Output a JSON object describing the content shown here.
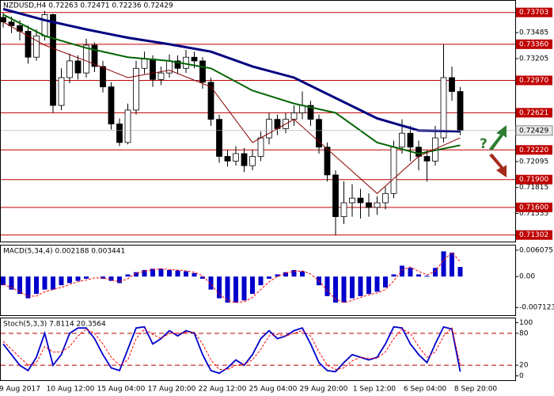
{
  "chart_data": [
    {
      "type": "candlestick",
      "title": "NZDUSD,H4 0.72263 0.72471 0.72236 0.72429",
      "annotation": "?",
      "color_up": "#ffffff",
      "color_down": "#000000",
      "ylim": [
        0.7124,
        0.7382
      ],
      "yticks": [
        0.73485,
        0.73205,
        0.72095,
        0.71815,
        0.71535
      ],
      "levels": [
        {
          "value": 0.73703,
          "label": "0.73703"
        },
        {
          "value": 0.7336,
          "label": "0.73360"
        },
        {
          "value": 0.7297,
          "label": "0.72970"
        },
        {
          "value": 0.72621,
          "label": "0.72621"
        },
        {
          "value": 0.7222,
          "label": "0.72220"
        },
        {
          "value": 0.719,
          "label": "0.71900"
        },
        {
          "value": 0.716,
          "label": "0.71600"
        },
        {
          "value": 0.71302,
          "label": "0.71302"
        }
      ],
      "level_color": "#c00000",
      "last_price": 0.72429,
      "open": [
        0.7365,
        0.736,
        0.7356,
        0.735,
        0.7322,
        0.7345,
        0.7368,
        0.727,
        0.73,
        0.7318,
        0.7305,
        0.7335,
        0.7312,
        0.729,
        0.725,
        0.723,
        0.7265,
        0.731,
        0.732,
        0.7298,
        0.7305,
        0.7318,
        0.731,
        0.7322,
        0.7318,
        0.7295,
        0.7255,
        0.7215,
        0.721,
        0.7218,
        0.7205,
        0.7215,
        0.7235,
        0.7255,
        0.7245,
        0.7255,
        0.7262,
        0.727,
        0.7255,
        0.7225,
        0.7195,
        0.715,
        0.7165,
        0.717,
        0.7165,
        0.716,
        0.7165,
        0.7175,
        0.7225,
        0.724,
        0.7225,
        0.7215,
        0.721,
        0.7235,
        0.73,
        0.7285
      ],
      "high": [
        0.737,
        0.7366,
        0.7362,
        0.7356,
        0.7352,
        0.7372,
        0.7369,
        0.731,
        0.7326,
        0.7324,
        0.7342,
        0.7338,
        0.7318,
        0.7295,
        0.7256,
        0.7272,
        0.7318,
        0.7328,
        0.7324,
        0.7312,
        0.7325,
        0.7324,
        0.733,
        0.7328,
        0.7322,
        0.73,
        0.726,
        0.7222,
        0.7226,
        0.7224,
        0.7222,
        0.7242,
        0.7262,
        0.726,
        0.7262,
        0.727,
        0.7285,
        0.7275,
        0.726,
        0.723,
        0.72,
        0.7188,
        0.7185,
        0.718,
        0.7175,
        0.7172,
        0.7182,
        0.7232,
        0.7255,
        0.7248,
        0.7232,
        0.7222,
        0.7248,
        0.7336,
        0.7312,
        0.729
      ],
      "low": [
        0.7354,
        0.7348,
        0.734,
        0.7315,
        0.7318,
        0.734,
        0.7262,
        0.7265,
        0.7294,
        0.7298,
        0.73,
        0.7306,
        0.7284,
        0.7244,
        0.7226,
        0.7228,
        0.726,
        0.7304,
        0.729,
        0.7292,
        0.73,
        0.7304,
        0.7305,
        0.731,
        0.7288,
        0.7248,
        0.7208,
        0.7204,
        0.7205,
        0.7198,
        0.72,
        0.721,
        0.7228,
        0.7238,
        0.724,
        0.7248,
        0.7255,
        0.7248,
        0.7218,
        0.7188,
        0.713,
        0.7142,
        0.715,
        0.7148,
        0.715,
        0.7152,
        0.7158,
        0.717,
        0.7218,
        0.721,
        0.72,
        0.7188,
        0.7205,
        0.723,
        0.7275,
        0.7238
      ],
      "close": [
        0.736,
        0.7356,
        0.735,
        0.7322,
        0.7345,
        0.7368,
        0.727,
        0.73,
        0.7318,
        0.7305,
        0.7335,
        0.7312,
        0.729,
        0.725,
        0.723,
        0.7265,
        0.731,
        0.732,
        0.7298,
        0.7305,
        0.7318,
        0.731,
        0.7322,
        0.7318,
        0.7295,
        0.7255,
        0.7215,
        0.721,
        0.7218,
        0.7205,
        0.7215,
        0.7235,
        0.7255,
        0.7245,
        0.7255,
        0.7262,
        0.727,
        0.7255,
        0.7225,
        0.7195,
        0.715,
        0.7165,
        0.717,
        0.7165,
        0.716,
        0.7165,
        0.7175,
        0.7225,
        0.724,
        0.7225,
        0.7215,
        0.721,
        0.7235,
        0.73,
        0.7285,
        0.7243
      ],
      "moving_averages": [
        {
          "color": "#000080",
          "width": 3,
          "x": [
            0,
            5,
            10,
            15,
            20,
            25,
            30,
            35,
            40,
            45,
            50,
            55
          ],
          "values": [
            0.7374,
            0.7362,
            0.7352,
            0.7343,
            0.7336,
            0.7328,
            0.7312,
            0.73,
            0.7278,
            0.7256,
            0.7243,
            0.7242
          ]
        },
        {
          "color": "#006400",
          "width": 2,
          "x": [
            0,
            5,
            10,
            15,
            20,
            25,
            30,
            35,
            40,
            45,
            50,
            55
          ],
          "values": [
            0.7368,
            0.7345,
            0.7332,
            0.7322,
            0.7318,
            0.731,
            0.7286,
            0.7272,
            0.7262,
            0.723,
            0.7218,
            0.7227
          ]
        },
        {
          "color": "#8b0000",
          "width": 1,
          "x": [
            0,
            5,
            10,
            15,
            20,
            25,
            30,
            35,
            40,
            45,
            50,
            55
          ],
          "values": [
            0.736,
            0.7335,
            0.7318,
            0.73,
            0.7308,
            0.729,
            0.723,
            0.7255,
            0.7215,
            0.7175,
            0.7215,
            0.7235
          ]
        }
      ]
    },
    {
      "type": "bar",
      "title": "MACD(5,34,4) 0.002188 0.003441",
      "ylim": [
        -0.00872,
        0.00696
      ],
      "yticks": [
        0.006075,
        {
          "value": 0,
          "label": "0.00"
        },
        -0.007123
      ],
      "series": [
        {
          "type": "bar",
          "color": "#0000cc",
          "values": [
            -0.002,
            -0.003,
            -0.004,
            -0.005,
            -0.004,
            -0.003,
            -0.003,
            -0.002,
            -0.0015,
            -0.001,
            -0.0005,
            0,
            -0.0005,
            -0.001,
            -0.0015,
            0.0005,
            0.001,
            0.0015,
            0.0018,
            0.0018,
            0.0015,
            0.0014,
            0.0012,
            0.0008,
            -0.0005,
            -0.003,
            -0.005,
            -0.006,
            -0.006,
            -0.0055,
            -0.004,
            -0.002,
            -0.0005,
            0.0005,
            0.001,
            0.0015,
            0.0012,
            0,
            -0.002,
            -0.0045,
            -0.006,
            -0.006,
            -0.005,
            -0.0045,
            -0.004,
            -0.0035,
            -0.0025,
            0.0005,
            0.0025,
            0.002,
            0.0005,
            0.0002,
            0.002,
            0.0058,
            0.0055,
            0.0022
          ]
        },
        {
          "type": "line",
          "dashed": true,
          "color": "#ff0000",
          "values": [
            -0.0018,
            -0.0025,
            -0.0035,
            -0.0045,
            -0.0045,
            -0.0035,
            -0.003,
            -0.0025,
            -0.0018,
            -0.0012,
            -0.0008,
            -0.0003,
            -0.0003,
            -0.0008,
            -0.0012,
            -0.0005,
            0.0008,
            0.0012,
            0.0016,
            0.0018,
            0.0016,
            0.0015,
            0.0013,
            0.001,
            0.0002,
            -0.0018,
            -0.004,
            -0.0055,
            -0.006,
            -0.0058,
            -0.0048,
            -0.003,
            -0.0012,
            0,
            0.0008,
            0.0012,
            0.0013,
            0.0006,
            -0.001,
            -0.0032,
            -0.0052,
            -0.006,
            -0.0055,
            -0.0048,
            -0.0042,
            -0.0038,
            -0.003,
            -0.001,
            0.0015,
            0.0022,
            0.0012,
            0.0004,
            0.0012,
            0.0038,
            0.0055,
            0.0034
          ]
        }
      ]
    },
    {
      "type": "line",
      "title": "Stoch(5,3,3) 7.8114 20.3564",
      "ylim": [
        -8,
        108
      ],
      "yticks": [
        100,
        80,
        20,
        0
      ],
      "levels": [
        80,
        20
      ],
      "level_color": "#c00000",
      "series": [
        {
          "type": "line",
          "color": "#0000cc",
          "values": [
            60,
            40,
            20,
            10,
            35,
            80,
            20,
            40,
            80,
            90,
            90,
            70,
            40,
            15,
            10,
            50,
            90,
            92,
            60,
            70,
            85,
            75,
            85,
            80,
            40,
            10,
            5,
            15,
            30,
            20,
            40,
            70,
            85,
            70,
            75,
            85,
            90,
            60,
            25,
            10,
            8,
            25,
            40,
            35,
            30,
            35,
            60,
            92,
            90,
            60,
            40,
            25,
            60,
            92,
            88,
            8
          ]
        },
        {
          "type": "line",
          "dashed": true,
          "color": "#ff0000",
          "values": [
            65,
            50,
            35,
            20,
            25,
            55,
            45,
            45,
            55,
            75,
            88,
            80,
            60,
            35,
            20,
            30,
            70,
            88,
            78,
            70,
            80,
            80,
            82,
            82,
            60,
            30,
            12,
            12,
            20,
            22,
            30,
            50,
            75,
            78,
            75,
            80,
            85,
            75,
            45,
            20,
            12,
            15,
            28,
            35,
            33,
            33,
            45,
            70,
            88,
            80,
            55,
            35,
            45,
            75,
            90,
            20
          ]
        }
      ],
      "x_labels": [
        "9 Aug 2017",
        "10 Aug 12:00",
        "15 Aug 04:00",
        "17 Aug 20:00",
        "22 Aug 12:00",
        "25 Aug 04:00",
        "29 Aug 20:00",
        "1 Sep 12:00",
        "6 Sep 04:00",
        "8 Sep 20:00"
      ]
    }
  ]
}
